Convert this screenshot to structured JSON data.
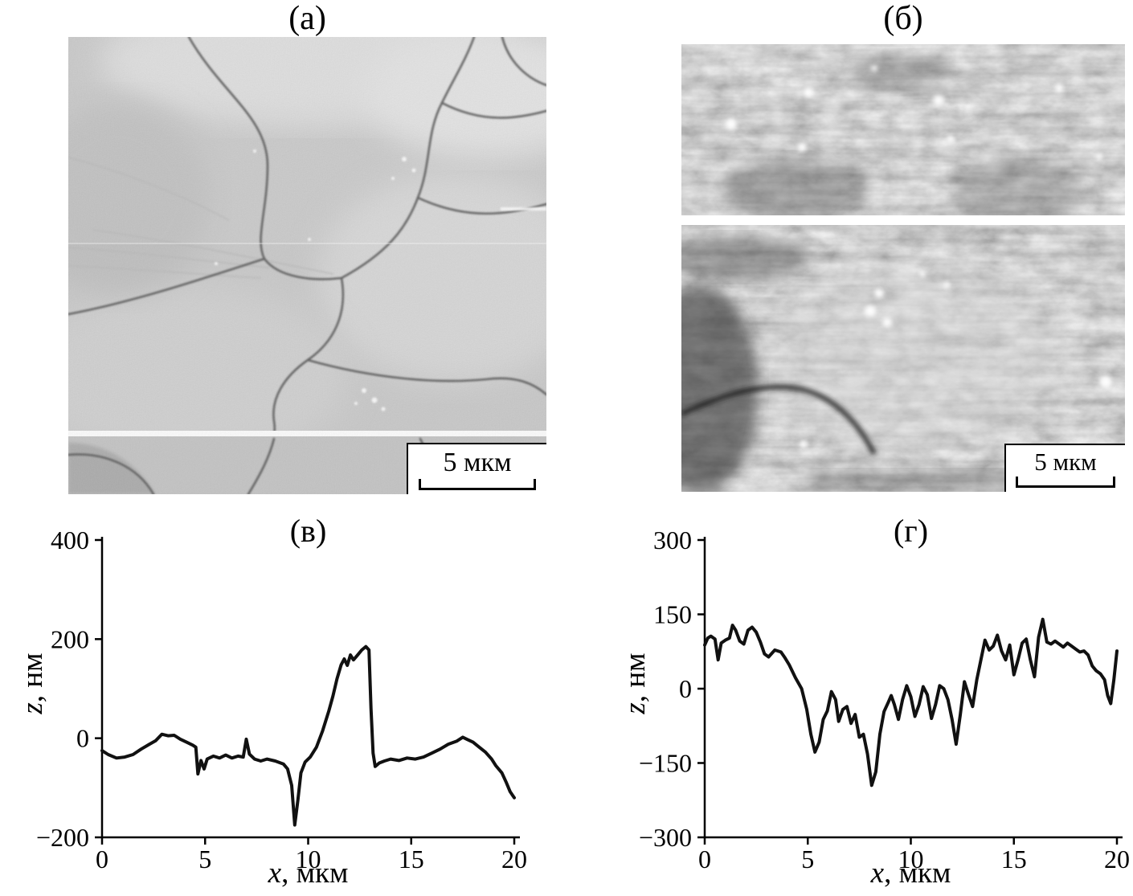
{
  "figure": {
    "background": "#ffffff",
    "panels": {
      "a": {
        "label": "(а)",
        "scalebar_label": "5 мкм"
      },
      "b": {
        "label": "(б)",
        "scalebar_label": "5 мкм"
      }
    }
  },
  "chart_data": [
    {
      "type": "line",
      "panel_label": "(в)",
      "xlabel_var": "x",
      "xlabel_rest": ", мкм",
      "ylabel_var": "z",
      "ylabel_rest": ", нм",
      "xlim": [
        0,
        20
      ],
      "ylim": [
        -200,
        400
      ],
      "grid": false,
      "legend": "none",
      "line_color": "#111111",
      "xticks": [
        {
          "v": 0,
          "label": "0"
        },
        {
          "v": 5,
          "label": "5"
        },
        {
          "v": 10,
          "label": "10"
        },
        {
          "v": 15,
          "label": "15"
        },
        {
          "v": 20,
          "label": "20"
        }
      ],
      "yticks": [
        {
          "v": 400,
          "label": "400"
        },
        {
          "v": 200,
          "label": "200"
        },
        {
          "v": 0,
          "label": "0"
        },
        {
          "v": -200,
          "label": "−200"
        }
      ],
      "points": [
        [
          0,
          -25
        ],
        [
          0.3,
          -33
        ],
        [
          0.7,
          -40
        ],
        [
          1.1,
          -38
        ],
        [
          1.5,
          -33
        ],
        [
          1.9,
          -22
        ],
        [
          2.3,
          -12
        ],
        [
          2.6,
          -5
        ],
        [
          2.9,
          8
        ],
        [
          3.2,
          5
        ],
        [
          3.5,
          6
        ],
        [
          3.8,
          -2
        ],
        [
          4.1,
          -8
        ],
        [
          4.4,
          -14
        ],
        [
          4.55,
          -18
        ],
        [
          4.65,
          -72
        ],
        [
          4.8,
          -45
        ],
        [
          4.95,
          -62
        ],
        [
          5.1,
          -42
        ],
        [
          5.4,
          -36
        ],
        [
          5.7,
          -40
        ],
        [
          6,
          -34
        ],
        [
          6.3,
          -40
        ],
        [
          6.6,
          -36
        ],
        [
          6.85,
          -38
        ],
        [
          7,
          -2
        ],
        [
          7.15,
          -32
        ],
        [
          7.4,
          -42
        ],
        [
          7.7,
          -46
        ],
        [
          8,
          -42
        ],
        [
          8.4,
          -46
        ],
        [
          8.8,
          -52
        ],
        [
          9,
          -62
        ],
        [
          9.2,
          -95
        ],
        [
          9.35,
          -175
        ],
        [
          9.5,
          -125
        ],
        [
          9.65,
          -70
        ],
        [
          9.85,
          -48
        ],
        [
          10.1,
          -38
        ],
        [
          10.4,
          -18
        ],
        [
          10.7,
          15
        ],
        [
          11,
          55
        ],
        [
          11.2,
          85
        ],
        [
          11.4,
          120
        ],
        [
          11.6,
          148
        ],
        [
          11.75,
          160
        ],
        [
          11.9,
          147
        ],
        [
          12.05,
          168
        ],
        [
          12.2,
          158
        ],
        [
          12.4,
          168
        ],
        [
          12.6,
          178
        ],
        [
          12.8,
          185
        ],
        [
          12.95,
          178
        ],
        [
          13.05,
          60
        ],
        [
          13.15,
          -30
        ],
        [
          13.25,
          -57
        ],
        [
          13.45,
          -50
        ],
        [
          13.7,
          -46
        ],
        [
          14,
          -42
        ],
        [
          14.4,
          -45
        ],
        [
          14.8,
          -40
        ],
        [
          15.2,
          -42
        ],
        [
          15.6,
          -38
        ],
        [
          16,
          -30
        ],
        [
          16.4,
          -22
        ],
        [
          16.8,
          -12
        ],
        [
          17.2,
          -6
        ],
        [
          17.5,
          2
        ],
        [
          17.7,
          -2
        ],
        [
          18,
          -8
        ],
        [
          18.3,
          -18
        ],
        [
          18.6,
          -28
        ],
        [
          18.9,
          -42
        ],
        [
          19.1,
          -55
        ],
        [
          19.4,
          -70
        ],
        [
          19.6,
          -88
        ],
        [
          19.8,
          -108
        ],
        [
          20,
          -120
        ]
      ]
    },
    {
      "type": "line",
      "panel_label": "(г)",
      "xlabel_var": "x",
      "xlabel_rest": ", мкм",
      "ylabel_var": "z",
      "ylabel_rest": ", нм",
      "xlim": [
        0,
        20
      ],
      "ylim": [
        -300,
        300
      ],
      "grid": false,
      "legend": "none",
      "line_color": "#111111",
      "xticks": [
        {
          "v": 0,
          "label": "0"
        },
        {
          "v": 5,
          "label": "5"
        },
        {
          "v": 10,
          "label": "10"
        },
        {
          "v": 15,
          "label": "15"
        },
        {
          "v": 20,
          "label": "20"
        }
      ],
      "yticks": [
        {
          "v": 300,
          "label": "300"
        },
        {
          "v": 150,
          "label": "150"
        },
        {
          "v": 0,
          "label": "0"
        },
        {
          "v": -150,
          "label": "−150"
        },
        {
          "v": -300,
          "label": "−300"
        }
      ],
      "points": [
        [
          0,
          88
        ],
        [
          0.15,
          102
        ],
        [
          0.3,
          106
        ],
        [
          0.5,
          100
        ],
        [
          0.65,
          58
        ],
        [
          0.8,
          92
        ],
        [
          1,
          98
        ],
        [
          1.2,
          102
        ],
        [
          1.35,
          128
        ],
        [
          1.5,
          118
        ],
        [
          1.7,
          96
        ],
        [
          1.9,
          90
        ],
        [
          2.1,
          118
        ],
        [
          2.3,
          124
        ],
        [
          2.5,
          114
        ],
        [
          2.7,
          94
        ],
        [
          2.9,
          70
        ],
        [
          3.1,
          64
        ],
        [
          3.4,
          78
        ],
        [
          3.7,
          74
        ],
        [
          3.9,
          62
        ],
        [
          4.1,
          48
        ],
        [
          4.4,
          22
        ],
        [
          4.7,
          0
        ],
        [
          4.95,
          -42
        ],
        [
          5.15,
          -92
        ],
        [
          5.35,
          -128
        ],
        [
          5.55,
          -108
        ],
        [
          5.75,
          -62
        ],
        [
          5.95,
          -45
        ],
        [
          6.15,
          -6
        ],
        [
          6.35,
          -22
        ],
        [
          6.5,
          -66
        ],
        [
          6.7,
          -42
        ],
        [
          6.9,
          -36
        ],
        [
          7.1,
          -70
        ],
        [
          7.3,
          -52
        ],
        [
          7.5,
          -98
        ],
        [
          7.7,
          -92
        ],
        [
          7.9,
          -132
        ],
        [
          8.1,
          -195
        ],
        [
          8.3,
          -168
        ],
        [
          8.5,
          -92
        ],
        [
          8.7,
          -46
        ],
        [
          8.9,
          -28
        ],
        [
          9.05,
          -14
        ],
        [
          9.2,
          -32
        ],
        [
          9.4,
          -62
        ],
        [
          9.6,
          -22
        ],
        [
          9.8,
          6
        ],
        [
          10,
          -16
        ],
        [
          10.2,
          -56
        ],
        [
          10.4,
          -32
        ],
        [
          10.6,
          4
        ],
        [
          10.8,
          -12
        ],
        [
          11,
          -60
        ],
        [
          11.2,
          -32
        ],
        [
          11.4,
          6
        ],
        [
          11.6,
          0
        ],
        [
          11.8,
          -22
        ],
        [
          12,
          -62
        ],
        [
          12.2,
          -112
        ],
        [
          12.4,
          -52
        ],
        [
          12.6,
          14
        ],
        [
          12.8,
          -12
        ],
        [
          13,
          -36
        ],
        [
          13.2,
          18
        ],
        [
          13.4,
          58
        ],
        [
          13.6,
          98
        ],
        [
          13.8,
          78
        ],
        [
          14,
          86
        ],
        [
          14.2,
          108
        ],
        [
          14.4,
          76
        ],
        [
          14.6,
          58
        ],
        [
          14.8,
          88
        ],
        [
          15,
          28
        ],
        [
          15.2,
          58
        ],
        [
          15.4,
          92
        ],
        [
          15.6,
          100
        ],
        [
          15.8,
          58
        ],
        [
          16,
          24
        ],
        [
          16.2,
          104
        ],
        [
          16.4,
          140
        ],
        [
          16.6,
          94
        ],
        [
          16.8,
          90
        ],
        [
          17,
          96
        ],
        [
          17.2,
          90
        ],
        [
          17.4,
          84
        ],
        [
          17.6,
          92
        ],
        [
          17.8,
          86
        ],
        [
          18,
          80
        ],
        [
          18.2,
          74
        ],
        [
          18.4,
          76
        ],
        [
          18.6,
          68
        ],
        [
          18.8,
          46
        ],
        [
          19,
          36
        ],
        [
          19.2,
          30
        ],
        [
          19.4,
          18
        ],
        [
          19.55,
          -14
        ],
        [
          19.7,
          -30
        ],
        [
          19.85,
          18
        ],
        [
          20,
          76
        ]
      ]
    }
  ]
}
